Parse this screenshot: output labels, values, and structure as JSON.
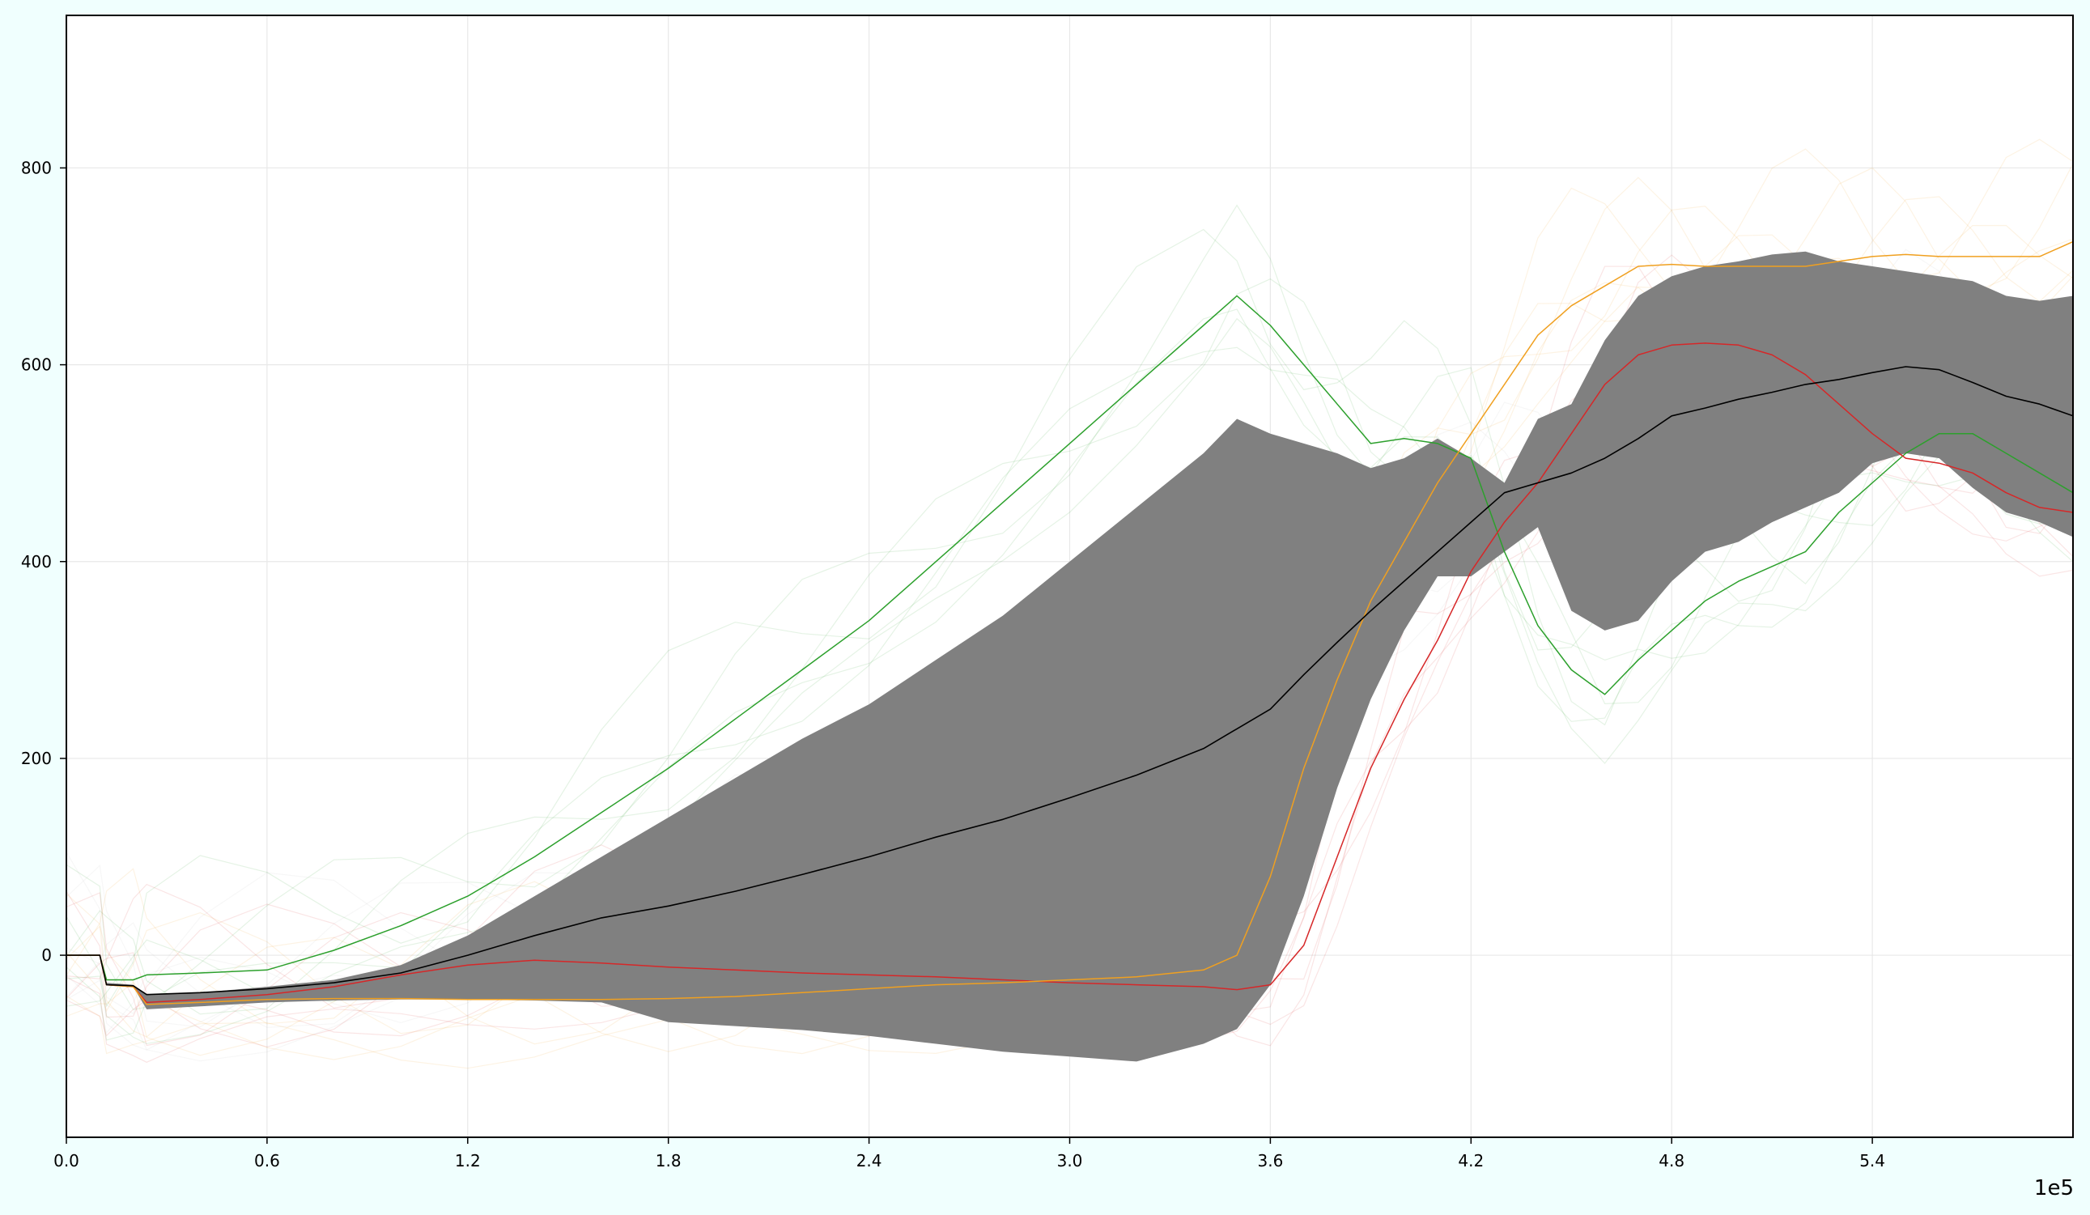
{
  "colors": {
    "page_background": "#f0fffe",
    "plot_background": "#ffffff",
    "band": "#808080",
    "mean": "#000000",
    "green": "#2ca02c",
    "red": "#d62728",
    "orange": "#f0a020",
    "faint": "#bbbbbb",
    "grid": "#e8e8e8"
  },
  "chart_data": {
    "type": "line",
    "title": "",
    "xlabel": "",
    "ylabel": "",
    "x_offset_label": "1e5",
    "xlim": [
      0,
      600000
    ],
    "ylim": [
      -185,
      955
    ],
    "grid": true,
    "legend": "none",
    "xticks": [
      0,
      60000,
      120000,
      180000,
      240000,
      300000,
      360000,
      420000,
      480000,
      540000
    ],
    "xtick_labels": [
      "0.0",
      "0.6",
      "1.2",
      "1.8",
      "2.4",
      "3.0",
      "3.6",
      "4.2",
      "4.8",
      "5.4"
    ],
    "yticks": [
      0,
      200,
      400,
      600,
      800
    ],
    "ytick_labels": [
      "0",
      "200",
      "400",
      "600",
      "800"
    ],
    "x": [
      0,
      10000,
      12000,
      20000,
      24000,
      40000,
      60000,
      80000,
      100000,
      120000,
      140000,
      160000,
      180000,
      200000,
      220000,
      240000,
      260000,
      280000,
      300000,
      320000,
      340000,
      350000,
      360000,
      370000,
      380000,
      390000,
      400000,
      410000,
      420000,
      430000,
      440000,
      450000,
      460000,
      470000,
      480000,
      490000,
      500000,
      510000,
      520000,
      530000,
      540000,
      550000,
      560000,
      570000,
      580000,
      590000,
      600000
    ],
    "band": {
      "upper": [
        0,
        0,
        -28,
        -30,
        -40,
        -38,
        -32,
        -25,
        -10,
        20,
        60,
        100,
        140,
        180,
        220,
        255,
        300,
        345,
        400,
        455,
        510,
        545,
        530,
        520,
        510,
        495,
        505,
        525,
        505,
        480,
        545,
        560,
        625,
        670,
        690,
        700,
        705,
        712,
        715,
        705,
        700,
        695,
        690,
        685,
        670,
        665,
        670
      ],
      "lower": [
        0,
        0,
        -30,
        -32,
        -55,
        -52,
        -48,
        -46,
        -45,
        -45,
        -46,
        -48,
        -68,
        -72,
        -76,
        -82,
        -90,
        -98,
        -103,
        -108,
        -90,
        -75,
        -30,
        60,
        170,
        260,
        330,
        385,
        385,
        410,
        435,
        350,
        330,
        340,
        380,
        410,
        420,
        440,
        455,
        470,
        500,
        510,
        505,
        475,
        450,
        440,
        425
      ]
    },
    "series": [
      {
        "color": "black",
        "values": [
          0,
          0,
          -30,
          -31,
          -40,
          -38,
          -34,
          -28,
          -18,
          0,
          20,
          38,
          50,
          65,
          82,
          100,
          120,
          138,
          160,
          183,
          210,
          230,
          250,
          285,
          318,
          350,
          380,
          410,
          440,
          470,
          480,
          490,
          505,
          525,
          548,
          556,
          565,
          572,
          580,
          585,
          592,
          598,
          595,
          582,
          568,
          560,
          548
        ]
      },
      {
        "color": "green",
        "values": [
          0,
          0,
          -25,
          -25,
          -20,
          -18,
          -15,
          5,
          30,
          60,
          100,
          145,
          190,
          240,
          290,
          340,
          400,
          460,
          520,
          580,
          640,
          670,
          640,
          600,
          560,
          520,
          525,
          520,
          505,
          410,
          335,
          290,
          265,
          300,
          330,
          360,
          380,
          395,
          410,
          450,
          480,
          510,
          530,
          530,
          510,
          490,
          470
        ]
      },
      {
        "color": "red",
        "values": [
          0,
          0,
          -30,
          -32,
          -48,
          -45,
          -40,
          -32,
          -20,
          -10,
          -5,
          -8,
          -12,
          -15,
          -18,
          -20,
          -22,
          -25,
          -28,
          -30,
          -32,
          -35,
          -30,
          10,
          100,
          190,
          260,
          320,
          390,
          440,
          480,
          530,
          580,
          610,
          620,
          622,
          620,
          610,
          590,
          560,
          530,
          505,
          500,
          490,
          470,
          455,
          450
        ]
      },
      {
        "color": "orange",
        "values": [
          0,
          0,
          -30,
          -32,
          -50,
          -48,
          -45,
          -44,
          -44,
          -45,
          -45,
          -45,
          -44,
          -42,
          -38,
          -34,
          -30,
          -28,
          -25,
          -22,
          -15,
          0,
          80,
          190,
          280,
          360,
          420,
          480,
          530,
          580,
          630,
          660,
          680,
          700,
          702,
          700,
          700,
          700,
          700,
          705,
          710,
          712,
          710,
          710,
          710,
          710,
          725
        ]
      }
    ]
  }
}
